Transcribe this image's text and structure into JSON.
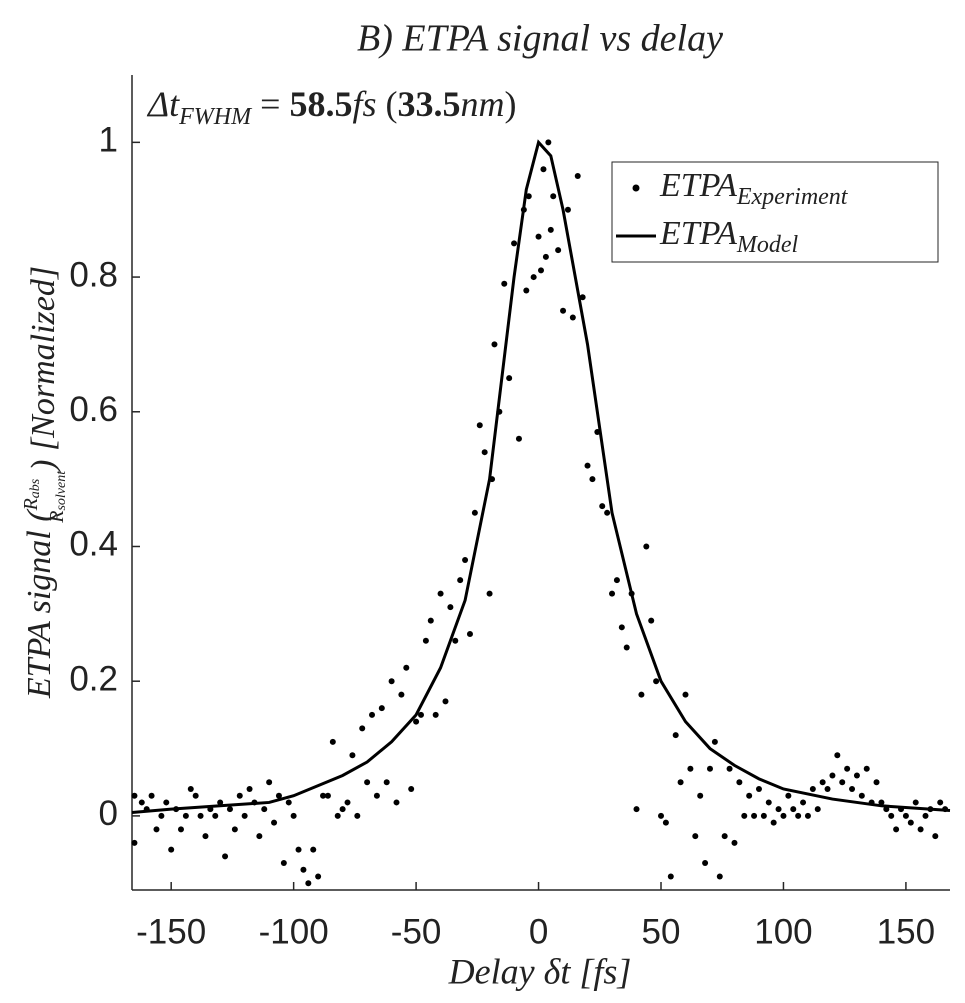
{
  "chart_data": {
    "type": "scatter",
    "title": "B) ETPA signal vs delay",
    "annotation": [
      {
        "text": "Δt",
        "style": "italic"
      },
      {
        "text": "FWHM",
        "style": "sub"
      },
      {
        "text": " = ",
        "style": "normal"
      },
      {
        "text": "58.5",
        "style": "bold"
      },
      {
        "text": "fs",
        "style": "italic"
      },
      {
        "text": " (",
        "style": "normal"
      },
      {
        "text": "33.5",
        "style": "bold"
      },
      {
        "text": "nm",
        "style": "italic"
      },
      {
        "text": ")",
        "style": "normal"
      }
    ],
    "x_label": "Delay δt [fs]",
    "y_label": {
      "pre": "ETPA signal (",
      "num": "R",
      "num_sub": "abs",
      "den": "R",
      "den_sub": "solvent",
      "post": ") [Normalized]"
    },
    "xlim": [
      -166,
      168
    ],
    "ylim": [
      -0.11,
      1.1
    ],
    "xticks": [
      -150,
      -100,
      -50,
      0,
      50,
      100,
      150
    ],
    "yticks": [
      0,
      0.2,
      0.4,
      0.6,
      0.8,
      1
    ],
    "legend": "top-right",
    "series": [
      {
        "name": "ETPA",
        "name_sub": "Experiment",
        "type": "scatter",
        "color": "#000000",
        "x": [
          -165,
          -165,
          -162,
          -160,
          -158,
          -156,
          -154,
          -152,
          -150,
          -148,
          -146,
          -144,
          -142,
          -140,
          -138,
          -136,
          -134,
          -132,
          -130,
          -128,
          -126,
          -124,
          -122,
          -120,
          -118,
          -116,
          -114,
          -112,
          -110,
          -108,
          -106,
          -104,
          -102,
          -100,
          -98,
          -96,
          -94,
          -92,
          -90,
          -88,
          -86,
          -84,
          -82,
          -80,
          -78,
          -76,
          -74,
          -72,
          -70,
          -68,
          -66,
          -64,
          -62,
          -60,
          -58,
          -56,
          -54,
          -52,
          -50,
          -48,
          -46,
          -44,
          -42,
          -40,
          -38,
          -36,
          -34,
          -32,
          -30,
          -28,
          -26,
          -24,
          -22,
          -20,
          -19,
          -18,
          -16,
          -14,
          -12,
          -10,
          -8,
          -6,
          -5,
          -4,
          -2,
          0,
          1,
          2,
          3,
          4,
          5,
          6,
          8,
          10,
          12,
          14,
          16,
          18,
          20,
          22,
          24,
          26,
          28,
          30,
          32,
          34,
          36,
          38,
          40,
          42,
          44,
          46,
          48,
          50,
          52,
          54,
          56,
          58,
          60,
          62,
          64,
          66,
          68,
          70,
          72,
          74,
          76,
          78,
          80,
          82,
          84,
          86,
          88,
          90,
          92,
          94,
          96,
          98,
          100,
          102,
          104,
          106,
          108,
          110,
          112,
          114,
          116,
          118,
          120,
          122,
          124,
          126,
          128,
          130,
          132,
          134,
          136,
          138,
          140,
          142,
          144,
          146,
          148,
          150,
          152,
          154,
          156,
          158,
          160,
          162,
          164,
          166
        ],
        "values": [
          0.03,
          -0.04,
          0.02,
          0.01,
          0.03,
          -0.02,
          0.0,
          0.02,
          -0.05,
          0.01,
          -0.02,
          0.0,
          0.04,
          0.03,
          0.0,
          -0.03,
          0.01,
          0.0,
          0.02,
          -0.06,
          0.01,
          -0.02,
          0.03,
          0.0,
          0.04,
          0.02,
          -0.03,
          0.01,
          0.05,
          -0.01,
          0.03,
          -0.07,
          0.02,
          0.0,
          -0.05,
          -0.08,
          -0.1,
          -0.05,
          -0.09,
          0.03,
          0.03,
          0.11,
          0.0,
          0.01,
          0.02,
          0.09,
          0.0,
          0.13,
          0.05,
          0.15,
          0.03,
          0.16,
          0.05,
          0.2,
          0.02,
          0.18,
          0.22,
          0.04,
          0.14,
          0.15,
          0.26,
          0.29,
          0.15,
          0.33,
          0.17,
          0.31,
          0.26,
          0.35,
          0.38,
          0.27,
          0.45,
          0.58,
          0.54,
          0.33,
          0.5,
          0.7,
          0.6,
          0.79,
          0.65,
          0.85,
          0.56,
          0.9,
          0.78,
          0.92,
          0.8,
          0.86,
          0.81,
          0.96,
          0.83,
          1.0,
          0.87,
          0.92,
          0.84,
          0.75,
          0.9,
          0.74,
          0.95,
          0.77,
          0.52,
          0.5,
          0.57,
          0.46,
          0.45,
          0.33,
          0.35,
          0.28,
          0.25,
          0.33,
          0.01,
          0.18,
          0.4,
          0.29,
          0.2,
          0.0,
          -0.01,
          -0.09,
          0.12,
          0.05,
          0.18,
          0.07,
          -0.03,
          0.03,
          -0.07,
          0.07,
          0.11,
          -0.09,
          -0.03,
          0.07,
          -0.04,
          0.05,
          0.0,
          0.03,
          0.0,
          0.04,
          0.0,
          0.02,
          -0.01,
          0.01,
          0.0,
          0.03,
          0.01,
          0.0,
          0.02,
          0.0,
          0.04,
          0.01,
          0.05,
          0.04,
          0.06,
          0.09,
          0.05,
          0.07,
          0.04,
          0.06,
          0.03,
          0.07,
          0.02,
          0.05,
          0.02,
          0.01,
          0.0,
          -0.02,
          0.01,
          0.0,
          -0.01,
          0.02,
          -0.02,
          0.0,
          0.01,
          -0.03,
          0.02,
          0.01
        ]
      },
      {
        "name": "ETPA",
        "name_sub": "Model",
        "type": "line",
        "color": "#000000",
        "x": [
          -166,
          -150,
          -130,
          -110,
          -100,
          -90,
          -80,
          -70,
          -60,
          -50,
          -40,
          -30,
          -20,
          -10,
          -5,
          0,
          5,
          10,
          20,
          30,
          40,
          50,
          60,
          70,
          80,
          90,
          100,
          120,
          140,
          168
        ],
        "values": [
          0.005,
          0.01,
          0.015,
          0.02,
          0.03,
          0.045,
          0.06,
          0.08,
          0.11,
          0.15,
          0.22,
          0.32,
          0.5,
          0.8,
          0.93,
          1.0,
          0.98,
          0.9,
          0.7,
          0.45,
          0.3,
          0.2,
          0.14,
          0.1,
          0.075,
          0.055,
          0.04,
          0.025,
          0.015,
          0.008
        ]
      }
    ]
  }
}
